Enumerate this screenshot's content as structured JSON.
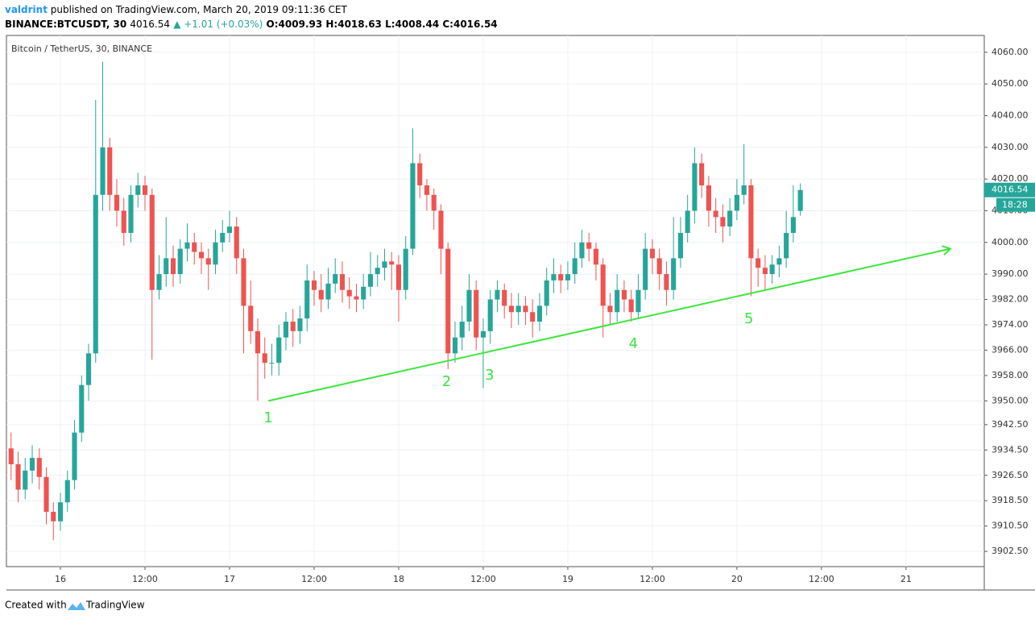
{
  "header": {
    "user": "valdrint",
    "published": "published on TradingView.com, March 20, 2019 09:11:36 CET",
    "symbol": "BINANCE:BTCUSDT, 30",
    "price": "4016.54",
    "change": "▲ +1.01 (+0.03%)",
    "open": "O:4009.93",
    "high": "H:4018.63",
    "low": "L:4008.44",
    "close": "C:4016.54"
  },
  "footer": {
    "created": "Created with",
    "brand": "TradingView"
  },
  "chart_data": {
    "type": "candlestick",
    "title": "Bitcoin / TetherUS, 30, BINANCE",
    "up_color": "#26a69a",
    "down_color": "#ef5350",
    "grid": true,
    "xlim": [
      -7.66,
      131.1
    ],
    "ylim": [
      3897.7,
      4065.3
    ],
    "xticks": [
      {
        "value": 0,
        "label": "16"
      },
      {
        "value": 12,
        "label": "12:00"
      },
      {
        "value": 24,
        "label": "17"
      },
      {
        "value": 36,
        "label": "12:00"
      },
      {
        "value": 48,
        "label": "18"
      },
      {
        "value": 60,
        "label": "12:00"
      },
      {
        "value": 72,
        "label": "19"
      },
      {
        "value": 84,
        "label": "12:00"
      },
      {
        "value": 96,
        "label": "20"
      },
      {
        "value": 108,
        "label": "12:00"
      },
      {
        "value": 120,
        "label": "21"
      }
    ],
    "yticks": [
      {
        "value": 4060,
        "label": "4060.00"
      },
      {
        "value": 4050,
        "label": "4050.00"
      },
      {
        "value": 4040,
        "label": "4040.00"
      },
      {
        "value": 4030,
        "label": "4030.00"
      },
      {
        "value": 4020,
        "label": "4020.00"
      },
      {
        "value": 4010,
        "label": "4010.00"
      },
      {
        "value": 4000,
        "label": "4000.00"
      },
      {
        "value": 3990,
        "label": "3990.00"
      },
      {
        "value": 3982,
        "label": "3982.00"
      },
      {
        "value": 3974,
        "label": "3974.00"
      },
      {
        "value": 3966,
        "label": "3966.00"
      },
      {
        "value": 3958,
        "label": "3958.00"
      },
      {
        "value": 3950,
        "label": "3950.00"
      },
      {
        "value": 3942.5,
        "label": "3942.50"
      },
      {
        "value": 3934.5,
        "label": "3934.50"
      },
      {
        "value": 3926.5,
        "label": "3926.50"
      },
      {
        "value": 3918.5,
        "label": "3918.50"
      },
      {
        "value": 3910.5,
        "label": "3910.50"
      },
      {
        "value": 3902.5,
        "label": "3902.50"
      }
    ],
    "x": [
      -7,
      -6,
      -5,
      -4,
      -3,
      -2,
      -1,
      0,
      1,
      2,
      3,
      4,
      5,
      6,
      7,
      8,
      9,
      10,
      11,
      12,
      13,
      14,
      15,
      16,
      17,
      18,
      19,
      20,
      21,
      22,
      23,
      24,
      25,
      26,
      27,
      28,
      29,
      30,
      31,
      32,
      33,
      34,
      35,
      36,
      37,
      38,
      39,
      40,
      41,
      42,
      43,
      44,
      45,
      46,
      47,
      48,
      49,
      50,
      51,
      52,
      53,
      54,
      55,
      56,
      57,
      58,
      59,
      60,
      61,
      62,
      63,
      64,
      65,
      66,
      67,
      68,
      69,
      70,
      71,
      72,
      73,
      74,
      75,
      76,
      77,
      78,
      79,
      80,
      81,
      82,
      83,
      84,
      85,
      86,
      87,
      88,
      89,
      90,
      91,
      92,
      93,
      94,
      95,
      96,
      97,
      98,
      99,
      100,
      101,
      102,
      103,
      104,
      105
    ],
    "open": [
      3935,
      3930,
      3922,
      3928,
      3932,
      3926,
      3915,
      3912,
      3918,
      3925,
      3940,
      3955,
      3965,
      4015,
      4030,
      4015,
      4010,
      4003,
      4015,
      4018,
      4015,
      3985,
      3990,
      3995,
      3990,
      3998,
      4000,
      3997,
      3995,
      3993,
      4000,
      4003,
      4005,
      3995,
      3980,
      3972,
      3965,
      3962,
      3962,
      3970,
      3975,
      3972,
      3976,
      3988,
      3985,
      3982,
      3987,
      3990,
      3985,
      3983,
      3982,
      3986,
      3990,
      3992,
      3994,
      3993,
      3985,
      3998,
      4025,
      4018,
      4015,
      4010,
      3998,
      3965,
      3970,
      3975,
      3985,
      3970,
      3972,
      3982,
      3985,
      3980,
      3978,
      3980,
      3978,
      3975,
      3980,
      3988,
      3990,
      3988,
      3990,
      3995,
      4000,
      3998,
      3993,
      3980,
      3978,
      3985,
      3982,
      3978,
      3985,
      3998,
      3995,
      3990,
      3985,
      3995,
      4003,
      4010,
      4025,
      4018,
      4010,
      4008,
      4005,
      4010,
      4015,
      4018,
      3995,
      3992,
      3990,
      3993,
      3995,
      4003,
      4009.93
    ],
    "high": [
      3940,
      3934,
      3932,
      3936,
      3935,
      3929,
      3918,
      3921,
      3928,
      3944,
      3958,
      3968,
      4045,
      4057,
      4033,
      4020,
      4014,
      4018,
      4022,
      4021,
      4017,
      3996,
      4008,
      3999,
      4001,
      4006,
      4003,
      4000,
      3998,
      4004,
      4007,
      4010,
      4008,
      3998,
      3988,
      3976,
      3970,
      3968,
      3974,
      3978,
      3979,
      3980,
      3993,
      3991,
      3990,
      3992,
      3995,
      3994,
      3989,
      3987,
      3990,
      3997,
      3996,
      3998,
      3997,
      3996,
      4002,
      4036,
      4028,
      4020,
      4017,
      4012,
      4000,
      3975,
      3980,
      3990,
      3988,
      3976,
      3985,
      3988,
      3987,
      3984,
      3984,
      3983,
      3982,
      3984,
      3992,
      3995,
      3993,
      3994,
      4000,
      4004,
      4003,
      4000,
      3995,
      3984,
      3990,
      3988,
      3985,
      3990,
      4003,
      4001,
      3998,
      3994,
      4008,
      4008,
      4015,
      4030,
      4028,
      4021,
      4014,
      4012,
      4014,
      4020,
      4031,
      4020,
      3998,
      3996,
      3996,
      3999,
      4010,
      4018,
      4018.63
    ],
    "low": [
      3925,
      3918,
      3919,
      3924,
      3922,
      3911,
      3906,
      3909,
      3915,
      3922,
      3937,
      3950,
      3962,
      4010,
      4010,
      4005,
      3999,
      4000,
      4011,
      4010,
      3963,
      3982,
      3986,
      3986,
      3987,
      3994,
      3993,
      3990,
      3985,
      3990,
      3997,
      4000,
      3990,
      3965,
      3968,
      3950,
      3957,
      3958,
      3958,
      3966,
      3967,
      3968,
      3972,
      3980,
      3978,
      3979,
      3984,
      3981,
      3979,
      3978,
      3979,
      3983,
      3986,
      3988,
      3985,
      3975,
      3982,
      3996,
      4014,
      4010,
      4004,
      3990,
      3960,
      3962,
      3966,
      3972,
      3966,
      3954,
      3968,
      3978,
      3976,
      3973,
      3974,
      3974,
      3970,
      3972,
      3977,
      3984,
      3984,
      3985,
      3987,
      3992,
      3994,
      3988,
      3970,
      3974,
      3975,
      3978,
      3975,
      3976,
      3982,
      3990,
      3985,
      3980,
      3982,
      3992,
      4000,
      4006,
      4014,
      4005,
      4003,
      4000,
      4002,
      4007,
      4012,
      3983,
      3986,
      3985,
      3987,
      3989,
      3992,
      4000,
      4008.44
    ],
    "close": [
      3930,
      3922,
      3928,
      3932,
      3926,
      3915,
      3912,
      3918,
      3925,
      3940,
      3955,
      3965,
      4015,
      4030,
      4015,
      4010,
      4003,
      4015,
      4018,
      4015,
      3985,
      3990,
      3995,
      3990,
      3998,
      4000,
      3997,
      3995,
      3993,
      4000,
      4003,
      4005,
      3995,
      3980,
      3972,
      3965,
      3962,
      3962,
      3970,
      3975,
      3972,
      3976,
      3988,
      3985,
      3982,
      3987,
      3990,
      3985,
      3983,
      3982,
      3986,
      3990,
      3992,
      3994,
      3993,
      3985,
      3998,
      4025,
      4018,
      4015,
      4010,
      3998,
      3965,
      3970,
      3975,
      3985,
      3970,
      3972,
      3982,
      3985,
      3980,
      3978,
      3980,
      3978,
      3975,
      3980,
      3988,
      3990,
      3988,
      3990,
      3995,
      4000,
      3998,
      3993,
      3980,
      3978,
      3985,
      3982,
      3978,
      3985,
      3998,
      3995,
      3990,
      3985,
      3995,
      4003,
      4010,
      4025,
      4018,
      4010,
      4008,
      4005,
      4010,
      4015,
      4018,
      3995,
      3992,
      3990,
      3993,
      3995,
      4003,
      4008,
      4016.54
    ],
    "last_price_label": "4016.54",
    "countdown": "18:28",
    "trendline": {
      "color": "#3de63d",
      "x": [
        29.5,
        126.3
      ],
      "y": [
        3950,
        3998
      ]
    },
    "annotations": [
      {
        "text": "1",
        "x": 29.5,
        "y": 3944.5
      },
      {
        "text": "2",
        "x": 54.8,
        "y": 3955.9
      },
      {
        "text": "3",
        "x": 60.9,
        "y": 3958
      },
      {
        "text": "4",
        "x": 81.3,
        "y": 3967.9
      },
      {
        "text": "5",
        "x": 97.7,
        "y": 3975.8
      }
    ]
  }
}
